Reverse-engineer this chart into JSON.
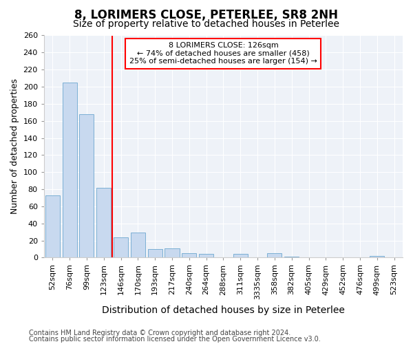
{
  "title1": "8, LORIMERS CLOSE, PETERLEE, SR8 2NH",
  "title2": "Size of property relative to detached houses in Peterlee",
  "xlabel": "Distribution of detached houses by size in Peterlee",
  "ylabel": "Number of detached properties",
  "categories": [
    "52sqm",
    "76sqm",
    "99sqm",
    "123sqm",
    "146sqm",
    "170sqm",
    "193sqm",
    "217sqm",
    "240sqm",
    "264sqm",
    "288sqm",
    "311sqm",
    "3335sqm",
    "358sqm",
    "382sqm",
    "405sqm",
    "429sqm",
    "452sqm",
    "476sqm",
    "499sqm",
    "523sqm"
  ],
  "values": [
    73,
    205,
    168,
    82,
    24,
    29,
    10,
    11,
    5,
    4,
    0,
    4,
    0,
    5,
    1,
    0,
    0,
    0,
    0,
    2,
    0
  ],
  "bar_color": "#c8d9ef",
  "bar_edge_color": "#7bafd4",
  "vline_x": 3.5,
  "vline_color": "red",
  "annotation_text": "8 LORIMERS CLOSE: 126sqm\n← 74% of detached houses are smaller (458)\n25% of semi-detached houses are larger (154) →",
  "annotation_box_color": "white",
  "annotation_box_edge": "red",
  "ylim": [
    0,
    260
  ],
  "yticks": [
    0,
    20,
    40,
    60,
    80,
    100,
    120,
    140,
    160,
    180,
    200,
    220,
    240,
    260
  ],
  "footer1": "Contains HM Land Registry data © Crown copyright and database right 2024.",
  "footer2": "Contains public sector information licensed under the Open Government Licence v3.0.",
  "bg_color": "#ffffff",
  "plot_bg_color": "#eef2f8",
  "grid_color": "#ffffff",
  "title1_fontsize": 12,
  "title2_fontsize": 10,
  "xlabel_fontsize": 10,
  "ylabel_fontsize": 9,
  "tick_fontsize": 8,
  "annot_fontsize": 8,
  "footer_fontsize": 7
}
